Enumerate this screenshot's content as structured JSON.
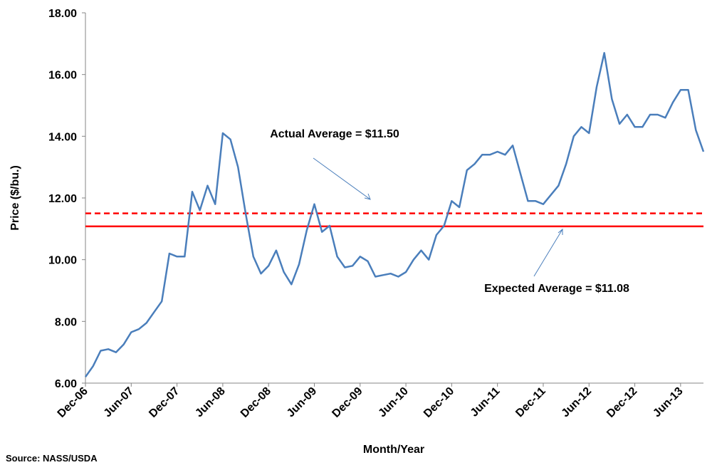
{
  "chart_data": {
    "type": "line",
    "x_label": "Month/Year",
    "y_label": "Price ($/bu.)",
    "source": "Source: NASS/USDA",
    "categories": [
      "Dec-06",
      null,
      null,
      null,
      null,
      null,
      "Jun-07",
      null,
      null,
      null,
      null,
      null,
      "Dec-07",
      null,
      null,
      null,
      null,
      null,
      "Jun-08",
      null,
      null,
      null,
      null,
      null,
      "Dec-08",
      null,
      null,
      null,
      null,
      null,
      "Jun-09",
      null,
      null,
      null,
      null,
      null,
      "Dec-09",
      null,
      null,
      null,
      null,
      null,
      "Jun-10",
      null,
      null,
      null,
      null,
      null,
      "Dec-10",
      null,
      null,
      null,
      null,
      null,
      "Jun-11",
      null,
      null,
      null,
      null,
      null,
      "Dec-11",
      null,
      null,
      null,
      null,
      null,
      "Jun-12",
      null,
      null,
      null,
      null,
      null,
      "Dec-12",
      null,
      null,
      null,
      null,
      null,
      "Jun-13",
      null,
      null,
      null
    ],
    "series": [
      {
        "name": "Price",
        "color": "#4a7ebb",
        "values": [
          6.2,
          6.55,
          7.05,
          7.1,
          7.0,
          7.25,
          7.65,
          7.75,
          7.95,
          8.3,
          8.65,
          10.2,
          10.1,
          10.1,
          12.2,
          11.6,
          12.4,
          11.8,
          14.1,
          13.9,
          13.0,
          11.5,
          10.1,
          9.55,
          9.8,
          10.3,
          9.6,
          9.2,
          9.85,
          10.95,
          11.8,
          10.9,
          11.1,
          10.1,
          9.75,
          9.8,
          10.1,
          9.95,
          9.45,
          9.5,
          9.55,
          9.45,
          9.6,
          10.0,
          10.3,
          10.0,
          10.8,
          11.1,
          11.9,
          11.7,
          12.9,
          13.1,
          13.4,
          13.4,
          13.5,
          13.4,
          13.7,
          12.8,
          11.9,
          11.9,
          11.8,
          12.1,
          12.4,
          13.1,
          14.0,
          14.3,
          14.1,
          15.6,
          16.7,
          15.2,
          14.4,
          14.7,
          14.3,
          14.3,
          14.7,
          14.7,
          14.6,
          15.1,
          15.5,
          15.5,
          14.2,
          13.5
        ]
      }
    ],
    "reference_lines": [
      {
        "label": "Actual Average = $11.50",
        "value": 11.5,
        "style": "dashed",
        "color": "#ff0000"
      },
      {
        "label": "Expected Average = $11.08",
        "value": 11.08,
        "style": "solid",
        "color": "#ff0000"
      }
    ],
    "ylim": [
      6,
      18
    ],
    "yticks": [
      {
        "value": 6,
        "label": "6.00"
      },
      {
        "value": 8,
        "label": "8.00"
      },
      {
        "value": 10,
        "label": "10.00"
      },
      {
        "value": 12,
        "label": "12.00"
      },
      {
        "value": 14,
        "label": "14.00"
      },
      {
        "value": 16,
        "label": "16.00"
      },
      {
        "value": 18,
        "label": "18.00"
      }
    ],
    "grid": false
  }
}
